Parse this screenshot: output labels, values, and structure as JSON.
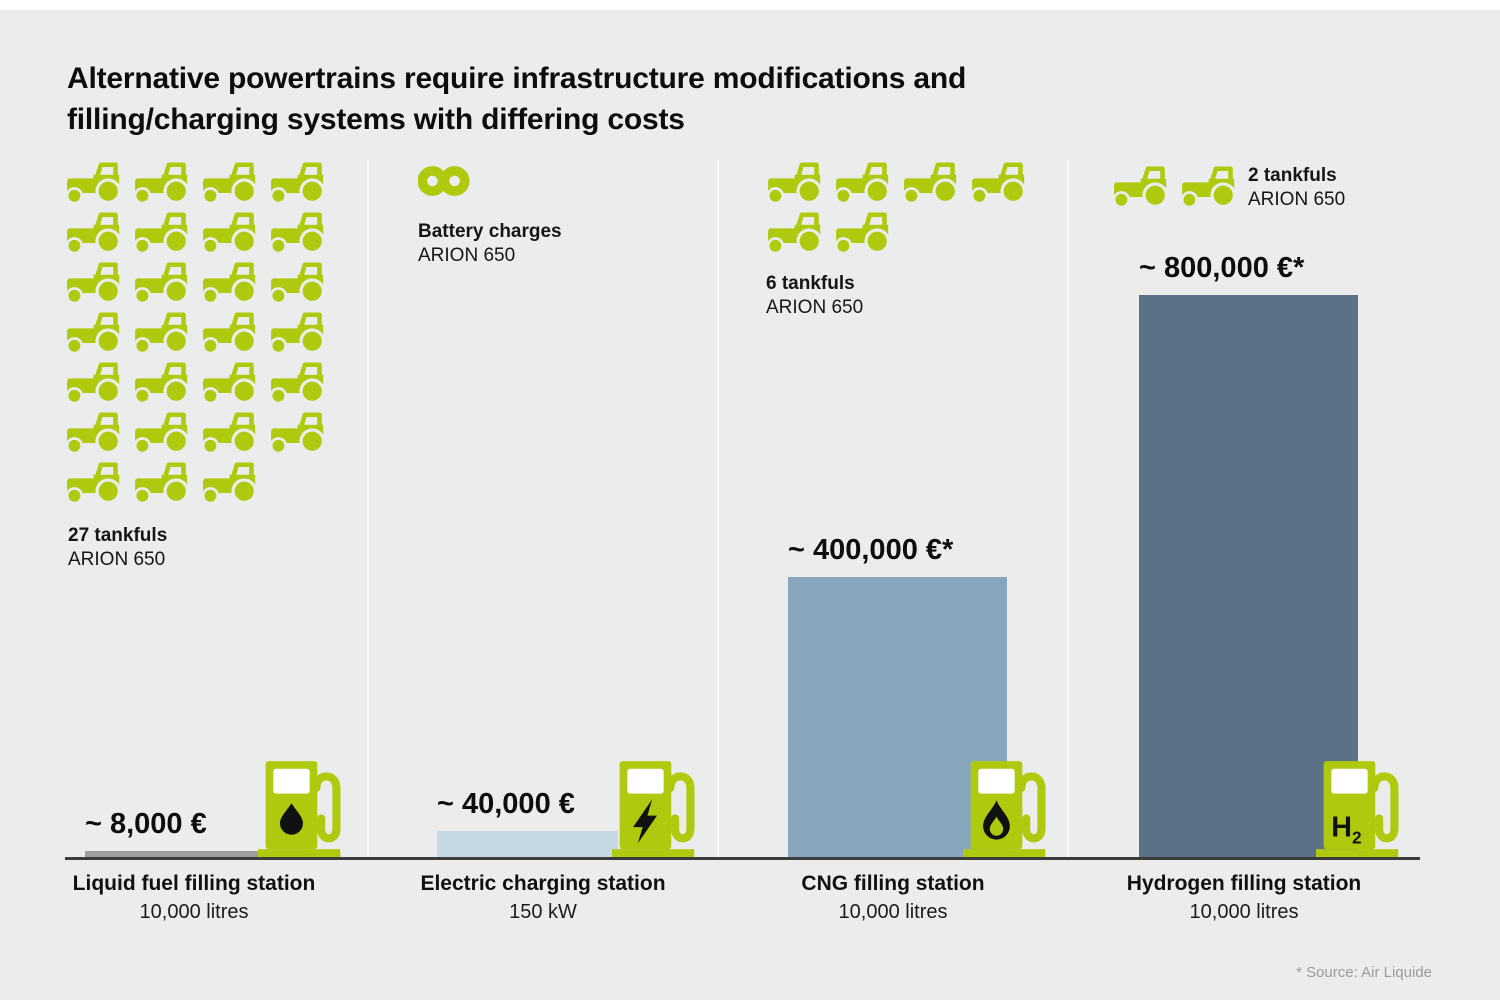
{
  "title": {
    "line1": "Alternative powertrains require infrastructure modifications and",
    "line2": "filling/charging systems with differing costs"
  },
  "source_note": "* Source: Air Liquide",
  "colors": {
    "accent_green": "#aec90e",
    "background": "#ececec",
    "baseline": "#3c3c3c",
    "text": "#111111",
    "source_text": "#9b9b9b",
    "bar_liquid_fuel": "#9e9e9e",
    "bar_electric": "#c5d8e4",
    "bar_cng": "#87a5bd",
    "bar_hydrogen": "#5a7186"
  },
  "chart_data": {
    "type": "bar",
    "title": "Alternative powertrains require infrastructure modifications and filling/charging systems with differing costs",
    "categories": [
      "Liquid fuel filling station",
      "Electric charging station",
      "CNG filling station",
      "Hydrogen filling station"
    ],
    "category_sublabels": [
      "10,000 litres",
      "150 kW",
      "10,000 litres",
      "10,000 litres"
    ],
    "values": [
      8000,
      40000,
      400000,
      800000
    ],
    "value_labels": [
      "~ 8,000 €",
      "~ 40,000 €",
      "~ 400,000 €*",
      "~ 800,000 €*"
    ],
    "unit": "EUR",
    "bar_colors": [
      "#9e9e9e",
      "#c5d8e4",
      "#87a5bd",
      "#5a7186"
    ],
    "tankfuls_per_station": [
      27,
      "infinite",
      6,
      2
    ],
    "tankful_labels": [
      "27 tankfuls",
      "Battery charges",
      "6 tankfuls",
      "2 tankfuls"
    ],
    "tractor_model": "ARION 650",
    "pump_symbols": [
      "oil-drop",
      "lightning-bolt",
      "flame",
      "H2"
    ],
    "legend": false,
    "grid": false,
    "source": "* Source: Air Liquide"
  },
  "sections": [
    {
      "id": "liquid-fuel",
      "tankfuls_label": "27 tankfuls",
      "model": "ARION 650",
      "tractors": 27,
      "value_label": "~ 8,000 €",
      "station": "Liquid fuel filling station",
      "capacity": "10,000 litres"
    },
    {
      "id": "electric",
      "tankfuls_label": "Battery charges",
      "model": "ARION 650",
      "tractors": 0,
      "value_label": "~ 40,000 €",
      "station": "Electric charging station",
      "capacity": "150 kW"
    },
    {
      "id": "cng",
      "tankfuls_label": "6 tankfuls",
      "model": "ARION 650",
      "tractors": 6,
      "value_label": "~ 400,000 €*",
      "station": "CNG filling station",
      "capacity": "10,000 litres"
    },
    {
      "id": "hydrogen",
      "tankfuls_label": "2 tankfuls",
      "model": "ARION 650",
      "tractors": 2,
      "value_label": "~ 800,000 €*",
      "station": "Hydrogen filling station",
      "capacity": "10,000 litres",
      "pump_text": "H",
      "pump_text_sub": "2"
    }
  ]
}
